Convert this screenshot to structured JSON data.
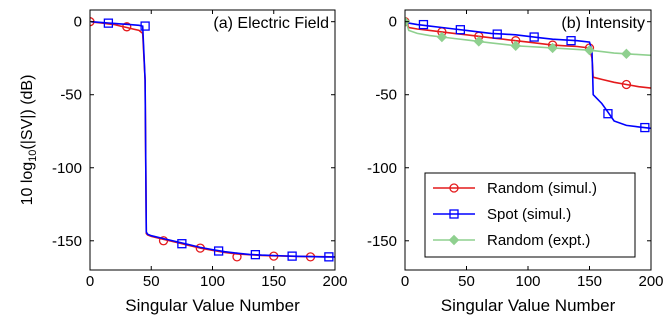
{
  "chart_data": [
    {
      "type": "line",
      "title": "(a) Electric Field",
      "xlabel": "Singular Value Number",
      "ylabel": "10 log10(|SV|) (dB)",
      "xlim": [
        0,
        200
      ],
      "ylim": [
        -170,
        8
      ],
      "xticks": [
        0,
        50,
        100,
        150,
        200
      ],
      "yticks": [
        0,
        -50,
        -100,
        -150
      ],
      "grid": false,
      "series": [
        {
          "name": "Random (simul.)",
          "color": "#e41a1c",
          "marker": "circle",
          "x": [
            1,
            5,
            10,
            15,
            20,
            25,
            30,
            35,
            40,
            43,
            45,
            46,
            47,
            50,
            60,
            70,
            80,
            90,
            100,
            110,
            120,
            130,
            140,
            150,
            160,
            170,
            180,
            190,
            200
          ],
          "y": [
            0,
            -0.5,
            -1,
            -1.5,
            -2,
            -3,
            -4,
            -5,
            -6,
            -8,
            -40,
            -145,
            -146,
            -147,
            -149,
            -151,
            -153,
            -155,
            -156.5,
            -158,
            -159,
            -159.5,
            -160,
            -160.3,
            -160.5,
            -160.7,
            -160.8,
            -160.9,
            -161
          ],
          "marker_x": [
            0,
            30,
            60,
            90,
            120,
            150,
            180
          ],
          "marker_y": [
            0,
            -3.5,
            -150,
            -155,
            -161,
            -160.5,
            -161
          ]
        },
        {
          "name": "Spot (simul.)",
          "color": "#0000ff",
          "marker": "square",
          "x": [
            1,
            5,
            10,
            15,
            20,
            25,
            30,
            35,
            40,
            43,
            45,
            46,
            47,
            50,
            60,
            70,
            80,
            90,
            100,
            110,
            120,
            130,
            140,
            150,
            160,
            170,
            180,
            190,
            200
          ],
          "y": [
            0,
            -0.3,
            -0.6,
            -0.9,
            -1.2,
            -1.5,
            -1.8,
            -2.1,
            -2.5,
            -3,
            -40,
            -144,
            -145.5,
            -146.5,
            -148.5,
            -150.5,
            -152.5,
            -154.5,
            -156,
            -157.5,
            -158.5,
            -159.3,
            -159.8,
            -160.1,
            -160.4,
            -160.6,
            -160.8,
            -161,
            -161
          ],
          "marker_x": [
            15,
            45,
            75,
            105,
            135,
            165,
            195
          ],
          "marker_y": [
            -1,
            -3,
            -152,
            -157,
            -159.5,
            -160.5,
            -161
          ]
        }
      ]
    },
    {
      "type": "line",
      "title": "(b) Intensity",
      "xlabel": "Singular Value Number",
      "xlim": [
        0,
        200
      ],
      "ylim": [
        -170,
        8
      ],
      "xticks": [
        0,
        50,
        100,
        150,
        200
      ],
      "yticks": [
        0,
        -50,
        -100,
        -150
      ],
      "grid": false,
      "legend": {
        "placement": "bottom-right",
        "entries": [
          "Random (simul.)",
          "Spot (simul.)",
          "Random (expt.)"
        ]
      },
      "series": [
        {
          "name": "Random (simul.)",
          "color": "#e41a1c",
          "marker": "circle",
          "x": [
            1,
            3,
            10,
            20,
            30,
            40,
            50,
            60,
            70,
            80,
            90,
            100,
            110,
            120,
            130,
            140,
            150,
            152,
            153,
            160,
            170,
            180,
            190,
            200
          ],
          "y": [
            0,
            -4,
            -5,
            -6,
            -7,
            -8,
            -9,
            -10,
            -11,
            -12,
            -13,
            -14,
            -15,
            -16,
            -16.5,
            -17,
            -18,
            -25,
            -38,
            -39.5,
            -41.5,
            -43,
            -44.5,
            -45.5
          ],
          "marker_x": [
            0,
            30,
            60,
            90,
            120,
            150,
            180
          ],
          "marker_y": [
            0,
            -7,
            -10,
            -13,
            -16,
            -18,
            -43
          ]
        },
        {
          "name": "Spot (simul.)",
          "color": "#0000ff",
          "marker": "square",
          "x": [
            1,
            3,
            10,
            20,
            30,
            40,
            50,
            60,
            70,
            80,
            90,
            100,
            110,
            120,
            130,
            140,
            150,
            152,
            153,
            160,
            165,
            170,
            180,
            190,
            200
          ],
          "y": [
            0,
            -1,
            -2,
            -3,
            -4,
            -5,
            -6,
            -7,
            -8,
            -8.5,
            -9,
            -10,
            -11,
            -12,
            -12.5,
            -13,
            -14,
            -20,
            -50,
            -56,
            -62,
            -68,
            -71,
            -72,
            -73
          ],
          "marker_x": [
            15,
            45,
            75,
            105,
            135,
            165,
            195
          ],
          "marker_y": [
            -2,
            -5.5,
            -8.5,
            -10.5,
            -13,
            -63,
            -72.5
          ]
        },
        {
          "name": "Random (expt.)",
          "color": "#8fd08f",
          "marker": "diamond",
          "x": [
            1,
            3,
            10,
            20,
            30,
            40,
            50,
            60,
            70,
            80,
            90,
            100,
            110,
            120,
            130,
            140,
            150,
            160,
            170,
            180,
            190,
            200
          ],
          "y": [
            0,
            -6,
            -8,
            -9.5,
            -10.5,
            -11.5,
            -12.5,
            -13.5,
            -14.5,
            -15.5,
            -16.5,
            -17,
            -17.5,
            -18,
            -18.5,
            -19,
            -19.5,
            -20.5,
            -21.5,
            -22,
            -22.5,
            -23
          ],
          "marker_x": [
            0,
            30,
            60,
            90,
            120,
            150,
            180
          ],
          "marker_y": [
            0,
            -10.5,
            -13.5,
            -16.5,
            -18,
            -19.5,
            -22
          ]
        }
      ]
    }
  ]
}
